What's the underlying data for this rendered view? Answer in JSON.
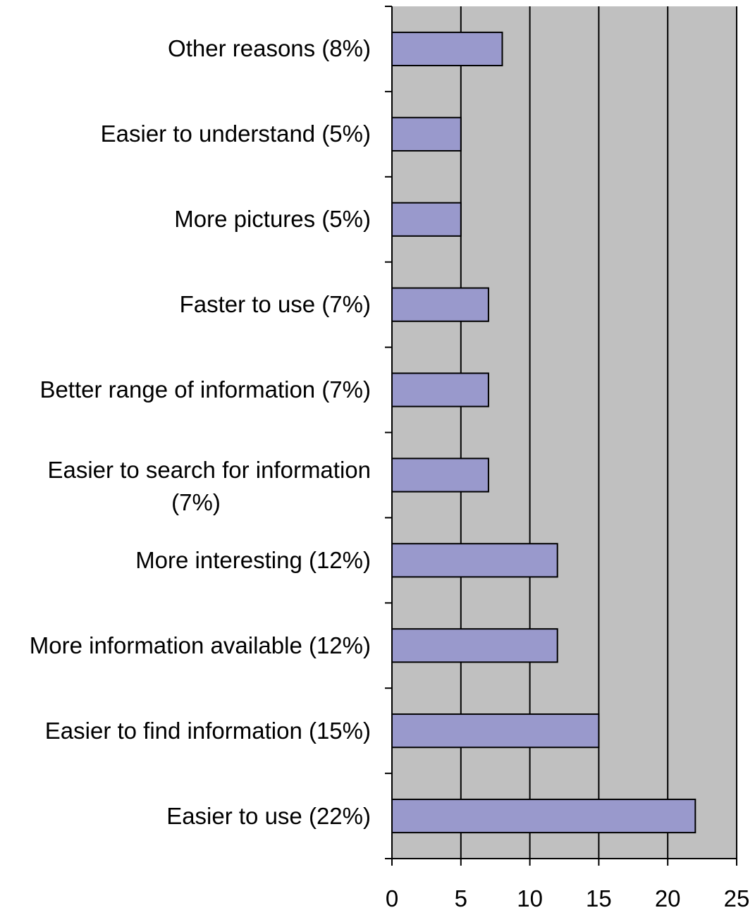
{
  "chart_data": {
    "type": "bar",
    "orientation": "horizontal",
    "categories": [
      "Other reasons (8%)",
      "Easier to understand (5%)",
      "More pictures  (5%)",
      "Faster to use (7%)",
      "Better range of information (7%)",
      "Easier to search for information\n(7%)",
      "More interesting (12%)",
      "More information available (12%)",
      "Easier to find information (15%)",
      "Easier to use (22%)"
    ],
    "values": [
      8,
      5,
      5,
      7,
      7,
      7,
      12,
      12,
      15,
      22
    ],
    "xlim": [
      0,
      25
    ],
    "xticks": [
      "0",
      "5",
      "10",
      "15",
      "20",
      "25"
    ],
    "grid": true,
    "legend": "none",
    "colors": {
      "bar_fill": "#9999cc",
      "bar_stroke": "#000000",
      "plot_background": "#c0c0c0",
      "gridline": "#000000"
    }
  }
}
